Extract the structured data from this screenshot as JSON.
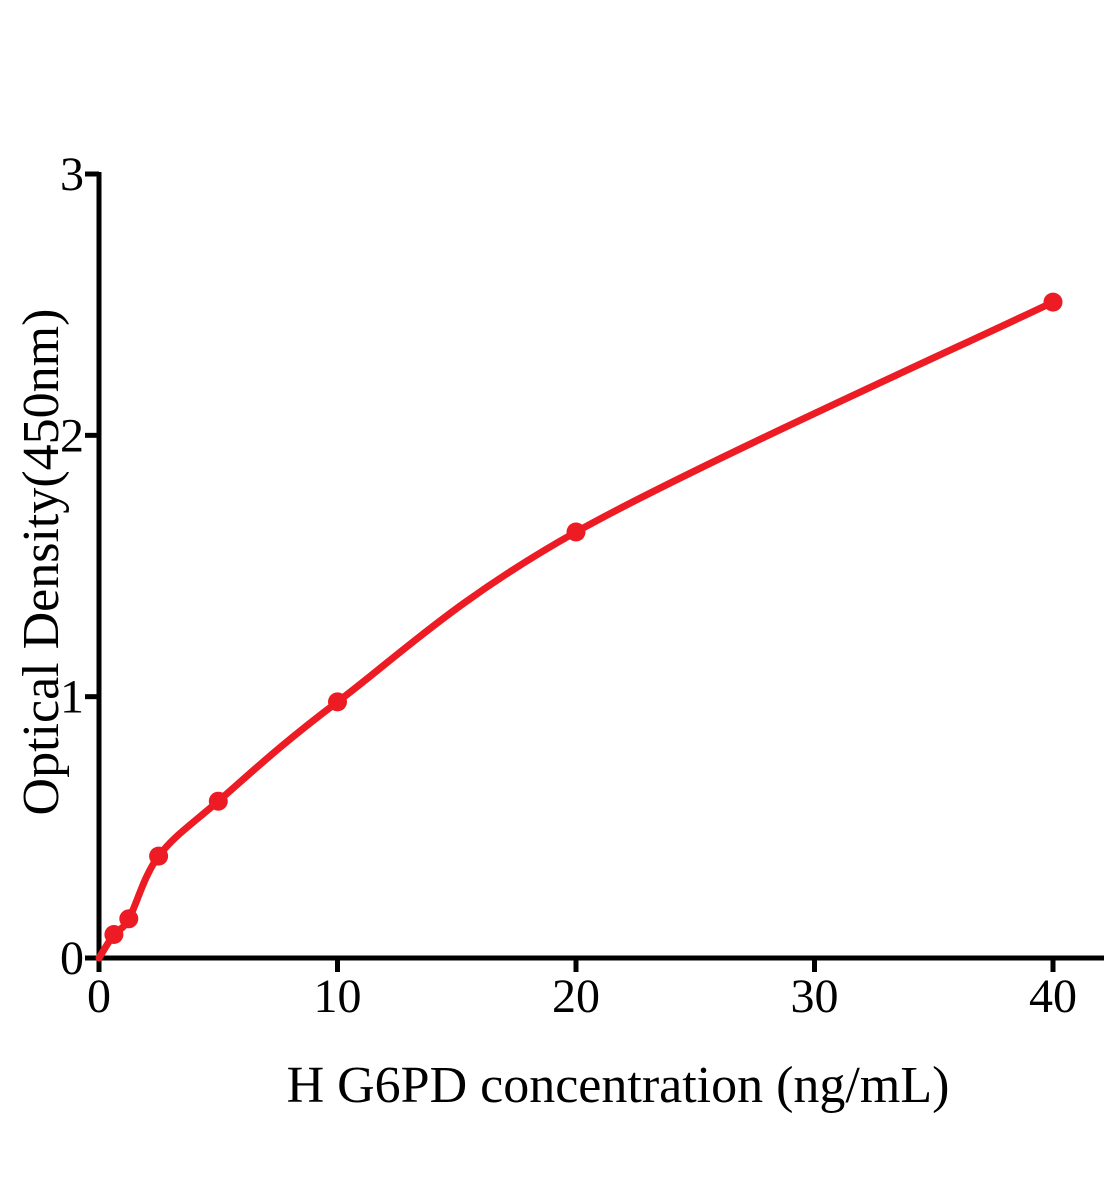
{
  "chart": {
    "background_color": "#ffffff"
  },
  "chart_data": {
    "type": "scatter",
    "title": "",
    "xlabel": "H G6PD concentration (ng/mL)",
    "ylabel": "Optical Density(450nm)",
    "x": [
      0.625,
      1.25,
      2.5,
      5,
      10,
      20,
      40
    ],
    "y": [
      0.09,
      0.15,
      0.39,
      0.6,
      0.98,
      1.63,
      2.51
    ],
    "curve_start": {
      "x": 0,
      "y": 0
    },
    "curve_style": "smooth fit through points starting at origin",
    "xlim": [
      0,
      42.1
    ],
    "ylim": [
      0,
      3
    ],
    "x_ticks": [
      0,
      10,
      20,
      30,
      40
    ],
    "y_ticks": [
      0,
      1,
      2,
      3
    ],
    "grid": false,
    "legend": null,
    "marker": "filled-circle",
    "marker_color": "#ED1C24",
    "line_color": "#ED1C24",
    "axis_color": "#000000"
  }
}
